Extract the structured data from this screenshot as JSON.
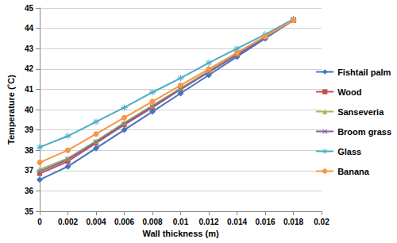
{
  "chart_data": {
    "type": "line",
    "x_label": "Wall thickness (m)",
    "y_label": "Temperature (˚C)",
    "x": [
      0,
      0.002,
      0.004,
      0.006,
      0.008,
      0.01,
      0.012,
      0.014,
      0.016,
      0.018
    ],
    "series": [
      {
        "name": "Fishtail palm",
        "color": "#4472c4",
        "marker": "diamond",
        "values": [
          36.55,
          37.2,
          38.1,
          39.0,
          39.9,
          40.8,
          41.7,
          42.6,
          43.5,
          44.4
        ]
      },
      {
        "name": "Wood",
        "color": "#c0504d",
        "marker": "square",
        "values": [
          36.85,
          37.45,
          38.35,
          39.25,
          40.1,
          41.0,
          41.85,
          42.7,
          43.55,
          44.4
        ]
      },
      {
        "name": "Sanseveria",
        "color": "#9bbb59",
        "marker": "triangle",
        "values": [
          37.05,
          37.6,
          38.45,
          39.35,
          40.2,
          41.05,
          41.9,
          42.75,
          43.6,
          44.4
        ]
      },
      {
        "name": "Broom grass",
        "color": "#8064a2",
        "marker": "x",
        "values": [
          36.95,
          37.55,
          38.4,
          39.3,
          40.15,
          41.0,
          41.85,
          42.7,
          43.55,
          44.4
        ]
      },
      {
        "name": "Glass",
        "color": "#4bacc6",
        "marker": "star",
        "values": [
          38.15,
          38.7,
          39.4,
          40.1,
          40.85,
          41.55,
          42.3,
          43.0,
          43.7,
          44.45
        ]
      },
      {
        "name": "Banana",
        "color": "#f79646",
        "marker": "circle",
        "values": [
          37.4,
          38.0,
          38.8,
          39.6,
          40.4,
          41.2,
          42.0,
          42.8,
          43.6,
          44.4
        ]
      }
    ],
    "xlim": [
      0,
      0.02
    ],
    "xticks": [
      0,
      0.002,
      0.004,
      0.006,
      0.008,
      0.01,
      0.012,
      0.014,
      0.016,
      0.018,
      0.02
    ],
    "ylim": [
      35,
      45
    ],
    "yticks": [
      35,
      36,
      37,
      38,
      39,
      40,
      41,
      42,
      43,
      44,
      45
    ],
    "grid": true,
    "legend": "right"
  }
}
